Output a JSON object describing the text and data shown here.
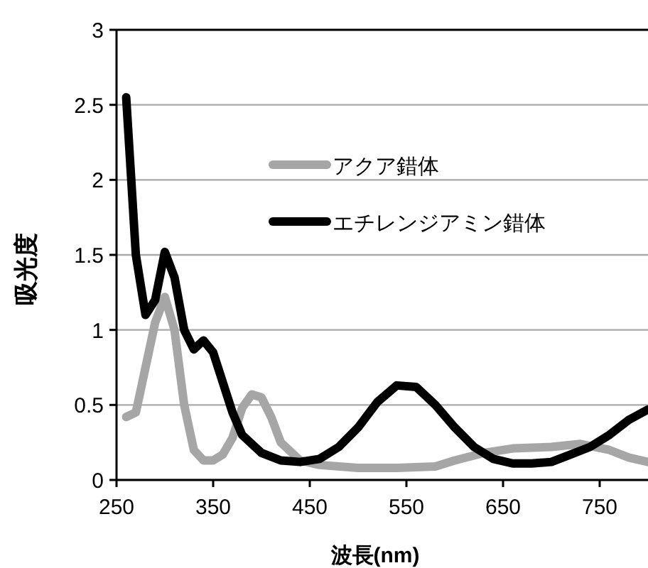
{
  "chart_data": {
    "type": "line",
    "xlabel": "波長(nm)",
    "ylabel": "吸光度",
    "xlim": [
      250,
      800
    ],
    "xticks": [
      250,
      350,
      450,
      550,
      650,
      750
    ],
    "ylim": [
      0,
      3
    ],
    "yticks": [
      0,
      0.5,
      1,
      1.5,
      2,
      2.5,
      3
    ],
    "grid": "y",
    "legend": "top",
    "marker": "none",
    "line_style": "solid",
    "series": [
      {
        "name": "アクア錯体",
        "color": "#a6a6a6",
        "x": [
          260,
          270,
          280,
          290,
          300,
          310,
          320,
          330,
          340,
          350,
          360,
          370,
          380,
          390,
          400,
          410,
          420,
          440,
          460,
          500,
          540,
          580,
          600,
          630,
          660,
          700,
          730,
          760,
          780,
          800
        ],
        "values": [
          0.42,
          0.45,
          0.75,
          1.05,
          1.22,
          1.0,
          0.5,
          0.2,
          0.13,
          0.13,
          0.17,
          0.28,
          0.48,
          0.57,
          0.55,
          0.42,
          0.25,
          0.13,
          0.1,
          0.08,
          0.08,
          0.09,
          0.13,
          0.18,
          0.21,
          0.22,
          0.24,
          0.2,
          0.15,
          0.12
        ]
      },
      {
        "name": "エチレンジアミン錯体",
        "color": "#000000",
        "x": [
          260,
          270,
          280,
          290,
          300,
          310,
          320,
          330,
          340,
          350,
          360,
          370,
          380,
          400,
          420,
          440,
          460,
          480,
          500,
          520,
          540,
          560,
          580,
          600,
          620,
          640,
          660,
          680,
          700,
          720,
          740,
          760,
          780,
          800
        ],
        "values": [
          2.55,
          1.5,
          1.1,
          1.2,
          1.52,
          1.35,
          1.0,
          0.87,
          0.93,
          0.85,
          0.65,
          0.45,
          0.3,
          0.18,
          0.13,
          0.12,
          0.14,
          0.22,
          0.35,
          0.52,
          0.63,
          0.62,
          0.5,
          0.35,
          0.22,
          0.14,
          0.11,
          0.11,
          0.12,
          0.17,
          0.22,
          0.3,
          0.4,
          0.47
        ]
      }
    ]
  }
}
